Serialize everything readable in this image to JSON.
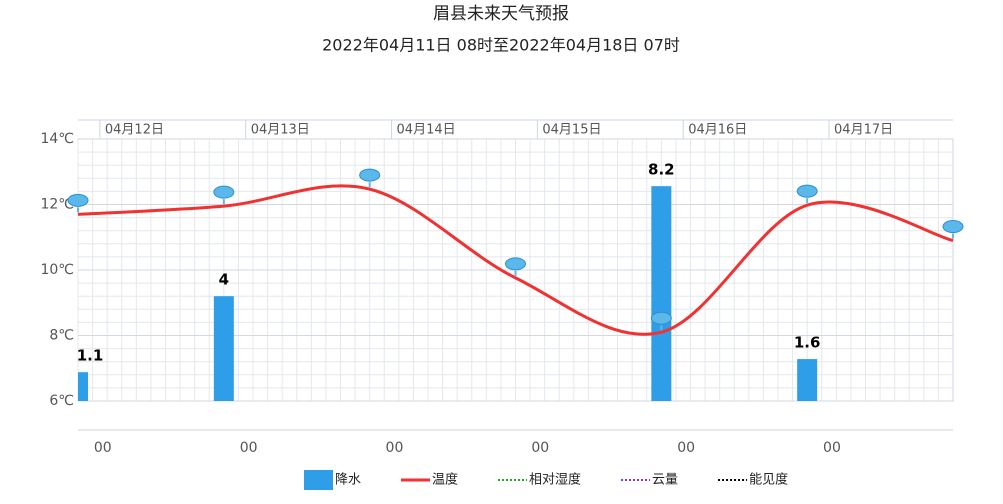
{
  "chart_data": {
    "type": "weather",
    "title": "眉县未来天气预报",
    "subtitle": "2022年04月11日 08时至2022年04月18日 07时",
    "categories": [
      null,
      null,
      null,
      null,
      null,
      null,
      null
    ],
    "day_labels": [
      "04月12日",
      "04月13日",
      "04月14日",
      "04月15日",
      "04月16日",
      "04月17日"
    ],
    "hour_labels": [
      "00",
      "00",
      "00",
      "00",
      "00",
      "00"
    ],
    "ylim": [
      6,
      14
    ],
    "yticks": [
      {
        "value": 6,
        "label": "6℃"
      },
      {
        "value": 8,
        "label": "8℃"
      },
      {
        "value": 10,
        "label": "10℃"
      },
      {
        "value": 12,
        "label": "12℃"
      },
      {
        "value": 14,
        "label": "14℃"
      }
    ],
    "y2lim": [
      0,
      10
    ],
    "grid": true,
    "series": [
      {
        "name": "降水",
        "color": "#2f9ee8",
        "kind": "bar",
        "axis": "y2",
        "values": [
          1.1,
          4,
          null,
          null,
          8.2,
          1.6,
          null
        ]
      },
      {
        "name": "温度",
        "color": "#f03232",
        "kind": "line",
        "values": [
          11.7,
          11.95,
          12.47,
          9.76,
          8.1,
          11.98,
          10.9
        ]
      },
      {
        "name": "相对湿度",
        "color": "#22aa22",
        "kind": "dotted",
        "values": [
          null,
          null,
          null,
          null,
          null,
          null,
          null
        ]
      },
      {
        "name": "云量",
        "color": "#8a2be2",
        "kind": "dotted",
        "values": [
          null,
          null,
          null,
          null,
          null,
          null,
          null
        ]
      },
      {
        "name": "能见度",
        "color": "#000000",
        "kind": "dotted",
        "values": [
          null,
          null,
          null,
          null,
          null,
          null,
          null
        ]
      }
    ]
  }
}
